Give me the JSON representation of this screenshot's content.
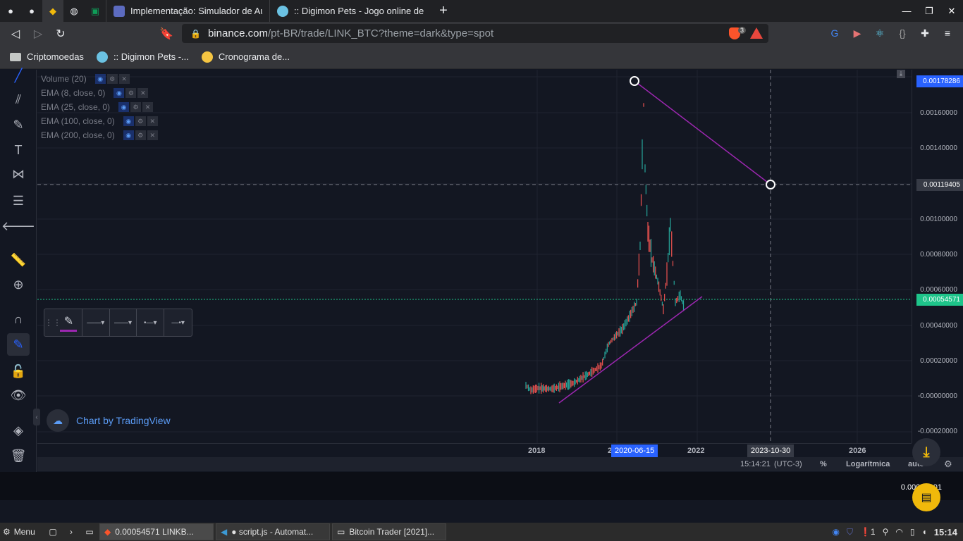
{
  "browser": {
    "pinned_tabs": [
      "github-icon",
      "github-icon",
      "binance-icon",
      "globe-icon",
      "sheets-icon"
    ],
    "tabs": [
      {
        "title": "Implementação: Simulador de Au",
        "icon": "page-icon"
      },
      {
        "title": ":: Digimon Pets - Jogo online de D",
        "icon": "digimon-icon"
      }
    ],
    "url_host": "binance.com",
    "url_path": "/pt-BR/trade/LINK_BTC?theme=dark&type=spot",
    "brave_count": "3",
    "bookmarks": [
      {
        "label": "Criptomoedas",
        "icon": "folder-icon"
      },
      {
        "label": ":: Digimon Pets -...",
        "icon": "digimon-icon"
      },
      {
        "label": "Cronograma de...",
        "icon": "person-icon"
      }
    ]
  },
  "chart": {
    "legend": [
      {
        "label": "Volume (20)"
      },
      {
        "label": "EMA (8, close, 0)"
      },
      {
        "label": "EMA (25, close, 0)"
      },
      {
        "label": "EMA (100, close, 0)"
      },
      {
        "label": "EMA (200, close, 0)"
      }
    ],
    "price_labels": [
      "0.00160000",
      "0.00140000",
      "0.00100000",
      "0.00080000",
      "0.00060000",
      "0.00040000",
      "0.00020000",
      "-0.00000000",
      "-0.00020000"
    ],
    "price_highlight_top": "0.00178286",
    "price_highlight_cross": "0.00119405",
    "price_highlight_last": "0.00054571",
    "time_labels": [
      "2018",
      "2",
      "2022",
      "2026"
    ],
    "time_highlight_1": "2020-06-15",
    "time_highlight_2": "2023-10-30",
    "watermark": "Chart by TradingView",
    "colors": {
      "up": "#26a69a",
      "down": "#ef5350",
      "trendline": "#9c27b0",
      "last_price": "#1ec48a",
      "highlight": "#2962ff"
    }
  },
  "bottom_bar": {
    "time": "15:14:21",
    "tz": "(UTC-3)",
    "percent": "%",
    "log": "Logarítmica",
    "auto": "auto"
  },
  "below_value": "0.00000001",
  "taskbar": {
    "menu": "Menu",
    "tasks": [
      {
        "label": "0.00054571    LINKB...",
        "icon": "brave-icon"
      },
      {
        "label": "● script.js - Automat...",
        "icon": "vscode-icon"
      },
      {
        "label": "Bitcoin Trader [2021]...",
        "icon": "window-icon"
      }
    ],
    "notif_count": "1",
    "clock": "15:14"
  }
}
